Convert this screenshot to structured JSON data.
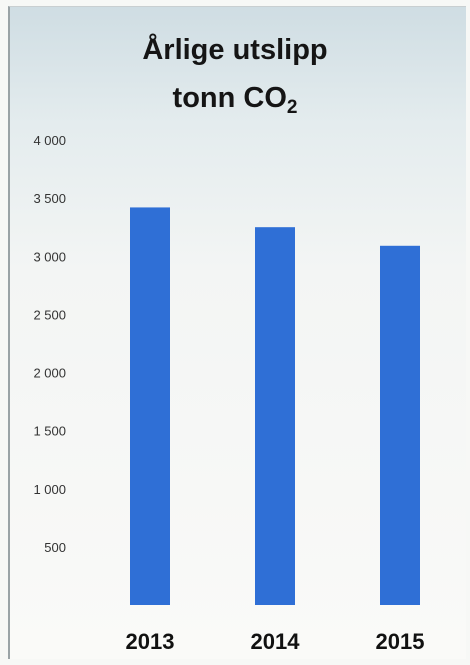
{
  "chart_data": {
    "type": "bar",
    "title_line1": "Årlige utslipp",
    "title_line2_main": "tonn CO",
    "title_line2_sub": "2",
    "categories": [
      "2013",
      "2014",
      "2015"
    ],
    "values": [
      3420,
      3250,
      3090
    ],
    "ylim": [
      0,
      4000
    ],
    "yticks": [
      {
        "value": 500,
        "label": "500"
      },
      {
        "value": 1000,
        "label": "1 000"
      },
      {
        "value": 1500,
        "label": "1 500"
      },
      {
        "value": 2000,
        "label": "2 000"
      },
      {
        "value": 2500,
        "label": "2 500"
      },
      {
        "value": 3000,
        "label": "3 000"
      },
      {
        "value": 3500,
        "label": "3 500"
      },
      {
        "value": 4000,
        "label": "4 000"
      }
    ],
    "bar_color": "#2f6fd6",
    "grid": false,
    "legend": "none"
  }
}
